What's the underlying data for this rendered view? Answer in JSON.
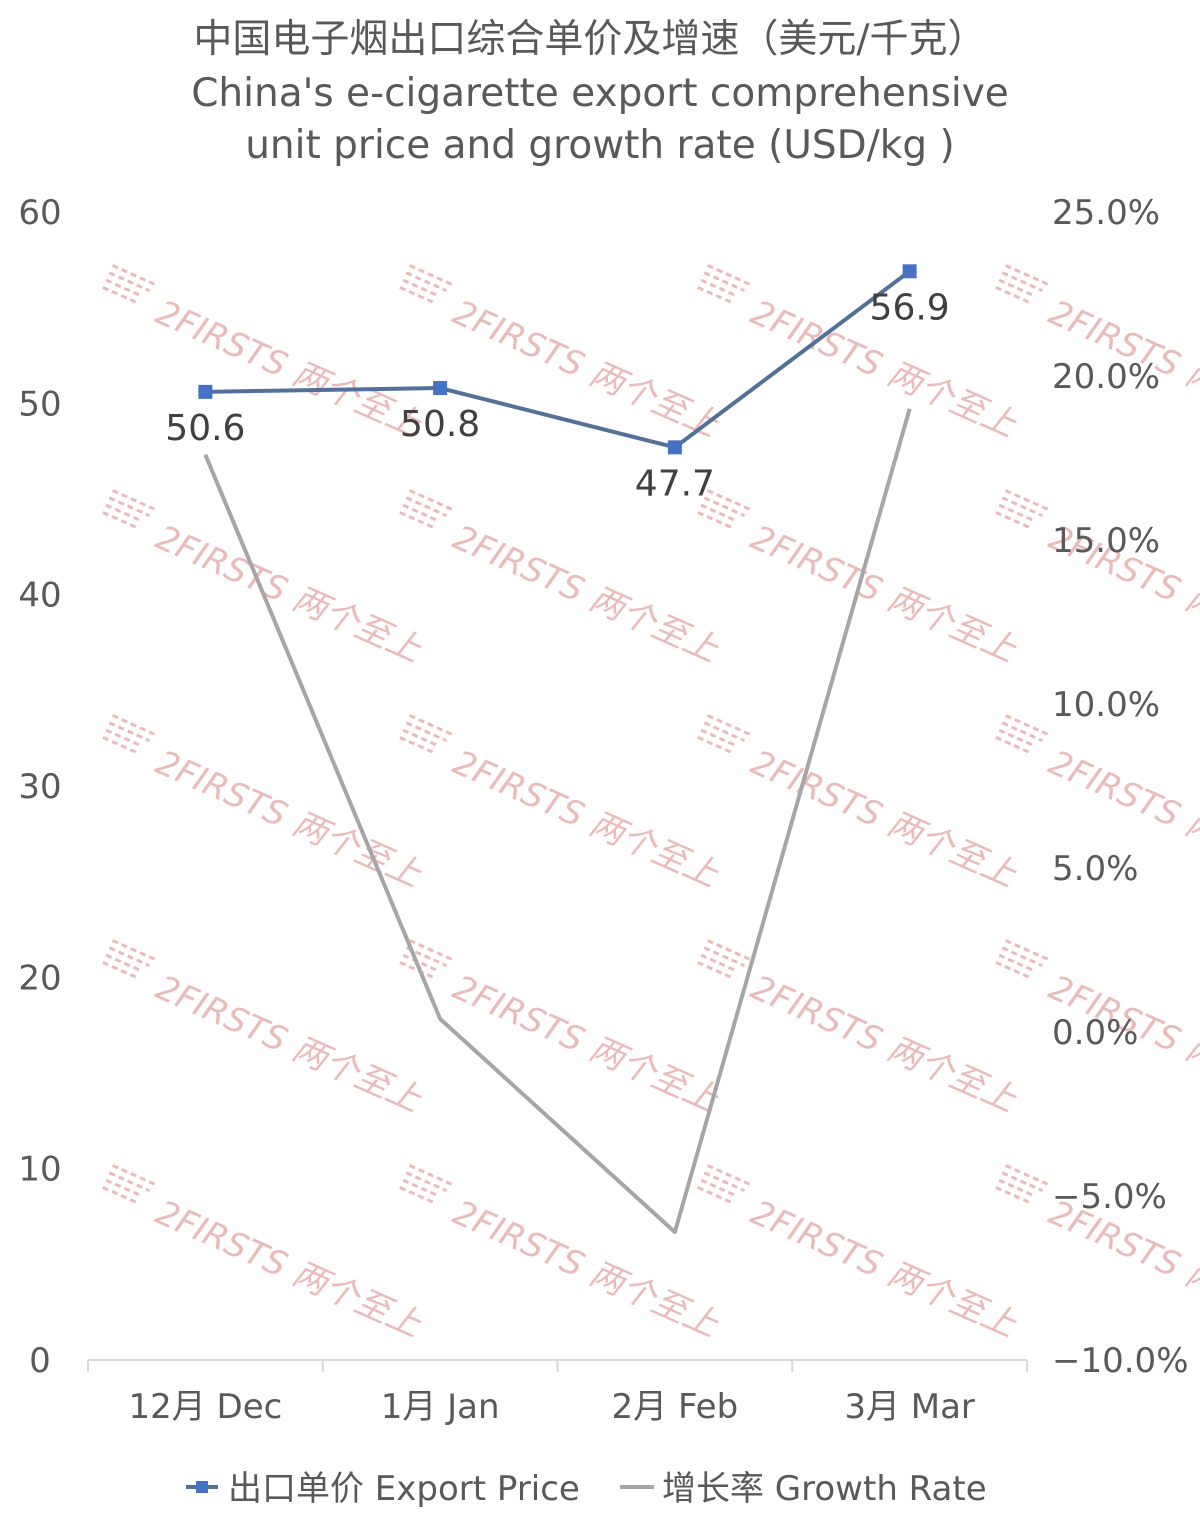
{
  "chart_data": {
    "type": "line",
    "title": "中国电子烟出口综合单价及增速（美元/千克）",
    "subtitle_lines": [
      "China's e-cigarette export comprehensive",
      "unit price and growth rate (USD/kg )"
    ],
    "categories": [
      "12月 Dec",
      "1月 Jan",
      "2月 Feb",
      "3月 Mar"
    ],
    "y_left": {
      "ticks": [
        "0",
        "10",
        "20",
        "30",
        "40",
        "50",
        "60"
      ],
      "ylim": [
        0,
        60
      ]
    },
    "y_right": {
      "ticks": [
        "−10.0%",
        "−5.0%",
        "0.0%",
        "5.0%",
        "10.0%",
        "15.0%",
        "20.0%",
        "25.0%"
      ],
      "ylim": [
        -10,
        25
      ]
    },
    "series": [
      {
        "name": "出口单价 Export Price",
        "axis": "left",
        "values": [
          50.6,
          50.8,
          47.7,
          56.9
        ],
        "labels": [
          "50.6",
          "50.8",
          "47.7",
          "56.9"
        ],
        "color": "#52709a",
        "marker_color": "#4472c4"
      },
      {
        "name": "增长率 Growth Rate",
        "axis": "right",
        "values": [
          17.6,
          0.4,
          -6.1,
          19.0
        ],
        "color": "#a6a6a6"
      }
    ],
    "legend_position": "bottom",
    "grid": false
  },
  "watermark": {
    "text": "2FIRSTS 两个至上",
    "color": "#e8b4b4"
  }
}
